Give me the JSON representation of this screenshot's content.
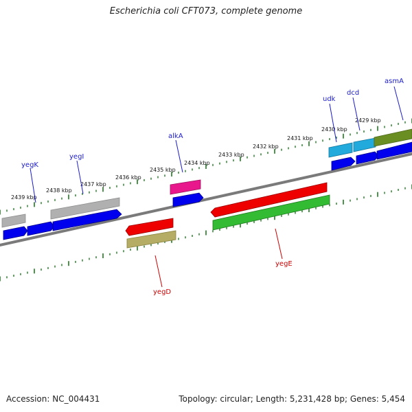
{
  "title": "Escherichia coli CFT073, complete genome",
  "accession_text": "Accession: NC_004431",
  "summary_text": "Topology: circular; Length: 5,231,428 bp; Genes: 5,454",
  "colors": {
    "backbone": "#808080",
    "tick_upper": "#1f7a1f",
    "tick_lower": "#1f7a1f",
    "label_blue": "#1a1acc",
    "label_red": "#cc0000"
  },
  "scale_labels": [
    "2439 kbp",
    "2438 kbp",
    "2437 kbp",
    "2436 kbp",
    "2435 kbp",
    "2434 kbp",
    "2433 kbp",
    "2432 kbp",
    "2431 kbp",
    "2430 kbp",
    "2429 kbp"
  ],
  "gene_labels": {
    "yegK": "yegK",
    "yegI": "yegI",
    "alkA": "alkA",
    "udk": "udk",
    "dcd": "dcd",
    "asmA": "asmA",
    "yegD": "yegD",
    "yegE": "yegE"
  },
  "features": [
    {
      "id": "f1",
      "color": "#b0b0b0",
      "strand": "none"
    },
    {
      "id": "f2",
      "color": "#0000ee",
      "strand": "forward"
    },
    {
      "id": "f3",
      "color": "#0000ee",
      "strand": "forward"
    },
    {
      "id": "f4",
      "color": "#aaaaaa",
      "strand": "none"
    },
    {
      "id": "f5",
      "color": "#0000ee",
      "strand": "forward"
    },
    {
      "id": "f6",
      "color": "#e8188c",
      "strand": "none"
    },
    {
      "id": "f7",
      "color": "#0000ee",
      "strand": "forward"
    },
    {
      "id": "f8",
      "color": "#22aadd",
      "strand": "none"
    },
    {
      "id": "f9",
      "color": "#22aadd",
      "strand": "none"
    },
    {
      "id": "f10",
      "color": "#6b8e23",
      "strand": "none"
    },
    {
      "id": "f11",
      "color": "#0000ee",
      "strand": "forward"
    },
    {
      "id": "f12",
      "color": "#0000ee",
      "strand": "forward"
    },
    {
      "id": "f13",
      "color": "#0000ee",
      "strand": "forward"
    },
    {
      "id": "f14",
      "color": "#ee0000",
      "strand": "reverse"
    },
    {
      "id": "f15",
      "color": "#b5ad66",
      "strand": "none"
    },
    {
      "id": "f16",
      "color": "#ee0000",
      "strand": "reverse"
    },
    {
      "id": "f17",
      "color": "#33bb33",
      "strand": "none"
    }
  ]
}
